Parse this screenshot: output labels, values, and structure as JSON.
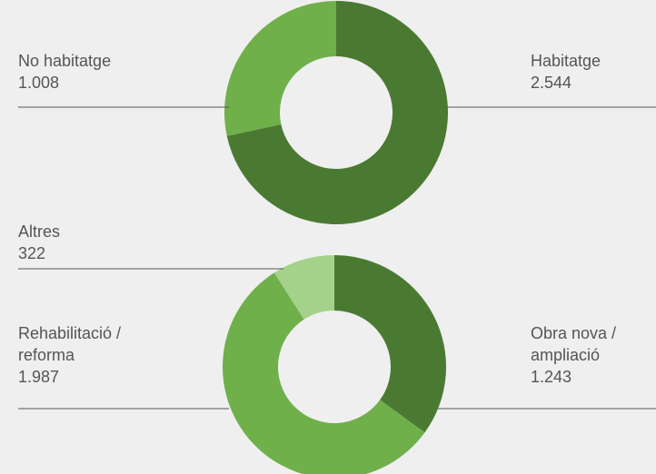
{
  "chart_data": [
    {
      "type": "donut",
      "categories": [
        "Habitatge",
        "No habitatge"
      ],
      "values": [
        2544,
        1008
      ],
      "value_labels": [
        "2.544",
        "1.008"
      ],
      "colors": [
        "#4a7a32",
        "#6fb04a"
      ]
    },
    {
      "type": "donut",
      "categories": [
        "Obra nova / ampliació",
        "Rehabilitació / reforma",
        "Altres"
      ],
      "values": [
        1243,
        1987,
        322
      ],
      "value_labels": [
        "1.243",
        "1.987",
        "322"
      ],
      "colors": [
        "#4a7a32",
        "#6fb04a",
        "#a5d28a"
      ]
    }
  ]
}
